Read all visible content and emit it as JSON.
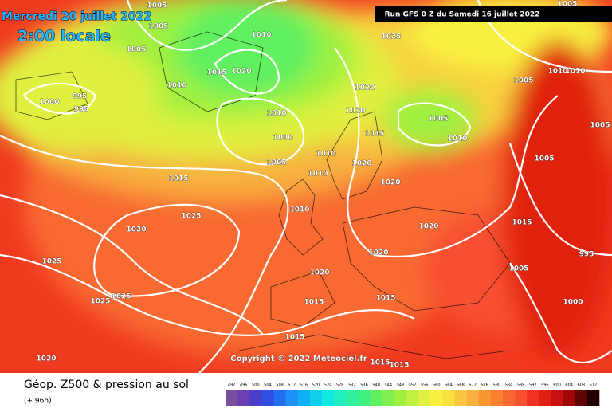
{
  "header": {
    "date": "Mercredi 20 juillet 2022",
    "time": "2:00 locale",
    "run": "Run GFS 0 Z du Samedi 16 juillet 2022"
  },
  "copyright": "Copyright © 2022 Meteociel.fr",
  "legend": {
    "title": "Géop. Z500 & pression au sol",
    "lead": "(+ 96h)",
    "scale": [
      492,
      496,
      500,
      504,
      508,
      512,
      516,
      520,
      524,
      528,
      532,
      536,
      540,
      544,
      548,
      552,
      556,
      560,
      564,
      568,
      572,
      576,
      580,
      584,
      588,
      592,
      596,
      600,
      604,
      608,
      612
    ],
    "colors": [
      "#7a4fa0",
      "#6b3fb0",
      "#4a3fc8",
      "#2f4fe0",
      "#1f6ff0",
      "#1f90f8",
      "#10b0f8",
      "#10d0f0",
      "#10e8e0",
      "#20f0c0",
      "#30f0a0",
      "#40f080",
      "#60f060",
      "#80f050",
      "#a0f040",
      "#c0f040",
      "#e0f040",
      "#f8f040",
      "#f8e040",
      "#f8c840",
      "#f8b040",
      "#f89830",
      "#f88030",
      "#f86830",
      "#f85030",
      "#f03020",
      "#e02010",
      "#c81010",
      "#a00808",
      "#600404",
      "#200000"
    ]
  },
  "isobars": [
    1005,
    1005,
    1005,
    1010,
    1015,
    1020,
    1010,
    1000,
    995,
    995,
    1010,
    1000,
    1005,
    1020,
    1020,
    1015,
    1005,
    1010,
    1025,
    1005,
    1010,
    1005,
    1005,
    1010,
    1010,
    1020,
    1020,
    1015,
    1025,
    1020,
    1010,
    1020,
    1015,
    1025,
    1020,
    1005,
    995,
    1020,
    1015,
    1015,
    1025,
    1025,
    1000,
    1015,
    1015,
    1015,
    1020,
    1005,
    1010
  ]
}
